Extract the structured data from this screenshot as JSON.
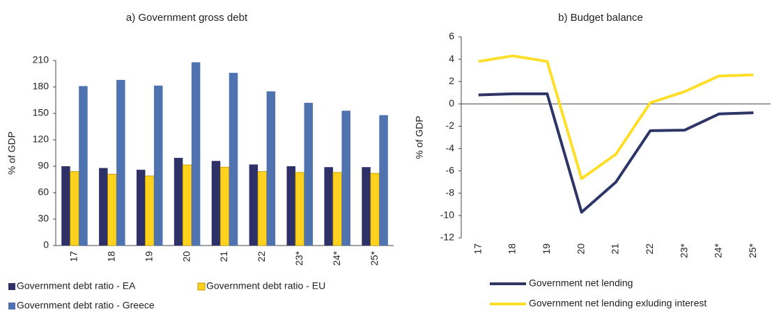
{
  "chart_data": [
    {
      "type": "bar",
      "title": "a) Government gross debt",
      "y_label": "% of GDP",
      "categories": [
        "17",
        "18",
        "19",
        "20",
        "21",
        "22",
        "23*",
        "24*",
        "25*"
      ],
      "series": [
        {
          "name": "Government debt ratio - EA",
          "color": "#2e3068",
          "values": [
            90,
            88,
            86,
            99.5,
            96,
            92,
            90,
            89,
            89
          ]
        },
        {
          "name": "Government debt ratio - EU",
          "color": "#ffd21f",
          "values": [
            84,
            81,
            79,
            91.5,
            89,
            84,
            83,
            83,
            82
          ]
        },
        {
          "name": "Government debt ratio - Greece",
          "color": "#4f73b0",
          "values": [
            181,
            188,
            181.5,
            208,
            196,
            175,
            162,
            153,
            148
          ]
        }
      ],
      "ylim": [
        0,
        210
      ],
      "yticks": [
        0,
        30,
        60,
        90,
        120,
        150,
        180,
        210
      ],
      "grid": false
    },
    {
      "type": "line",
      "title": "b) Budget balance",
      "y_label": "% of GDP",
      "categories": [
        "17",
        "18",
        "19",
        "20",
        "21",
        "22",
        "23*",
        "24*",
        "25*"
      ],
      "series": [
        {
          "name": "Government net lending",
          "color": "#2e3567",
          "values": [
            0.8,
            0.9,
            0.9,
            -9.7,
            -7.0,
            -2.4,
            -2.35,
            -0.9,
            -0.8
          ]
        },
        {
          "name": "Government net lending exluding interest",
          "color": "#ffde2a",
          "values": [
            3.8,
            4.3,
            3.8,
            -6.7,
            -4.5,
            0.1,
            1.1,
            2.5,
            2.6
          ]
        }
      ],
      "ylim": [
        -12,
        6
      ],
      "yticks": [
        -12,
        -10,
        -8,
        -6,
        -4,
        -2,
        0,
        2,
        4,
        6
      ],
      "grid": false
    }
  ]
}
